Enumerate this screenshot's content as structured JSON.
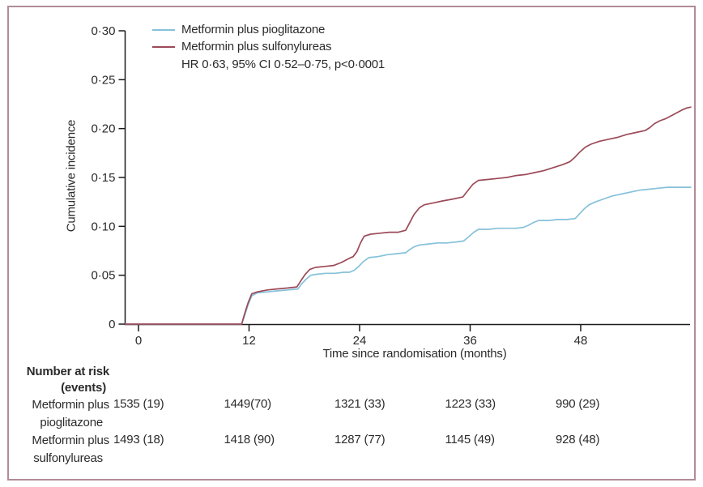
{
  "figure": {
    "border_color": "#b28b97",
    "background": "#ffffff",
    "text_color": "#2b2b2b"
  },
  "chart_data": {
    "type": "line",
    "title": "",
    "xlabel": "Time since randomisation (months)",
    "ylabel": "Cumulative incidence",
    "xlim": [
      0,
      60
    ],
    "ylim": [
      0,
      0.3
    ],
    "xticks": [
      0,
      12,
      24,
      36,
      48
    ],
    "ytick_values": [
      0,
      0.05,
      0.1,
      0.15,
      0.2,
      0.25,
      0.3
    ],
    "ytick_labels": [
      "0",
      "0·05",
      "0·10",
      "0·15",
      "0·20",
      "0·25",
      "0·30"
    ],
    "grid": false,
    "legend_position": "top-left-inside",
    "annotation": "HR 0·63, 95% CI 0·52–0·75, p<0·0001",
    "series": [
      {
        "name": "Metformin plus pioglitazone",
        "color": "#85c1da",
        "points": [
          [
            0,
            0
          ],
          [
            11.2,
            0
          ],
          [
            11.5,
            0.008
          ],
          [
            11.9,
            0.02
          ],
          [
            12.3,
            0.029
          ],
          [
            12.9,
            0.032
          ],
          [
            14,
            0.033
          ],
          [
            15,
            0.034
          ],
          [
            16.2,
            0.035
          ],
          [
            17.3,
            0.036
          ],
          [
            17.7,
            0.041
          ],
          [
            18.2,
            0.046
          ],
          [
            18.7,
            0.05
          ],
          [
            19.3,
            0.051
          ],
          [
            20.3,
            0.052
          ],
          [
            21.3,
            0.052
          ],
          [
            22.3,
            0.053
          ],
          [
            22.9,
            0.053
          ],
          [
            23.4,
            0.055
          ],
          [
            23.9,
            0.059
          ],
          [
            24.4,
            0.064
          ],
          [
            25.0,
            0.068
          ],
          [
            26,
            0.069
          ],
          [
            27,
            0.071
          ],
          [
            28,
            0.072
          ],
          [
            29,
            0.073
          ],
          [
            29.4,
            0.076
          ],
          [
            29.9,
            0.079
          ],
          [
            30.5,
            0.081
          ],
          [
            31.5,
            0.082
          ],
          [
            32.5,
            0.083
          ],
          [
            33.5,
            0.083
          ],
          [
            34.5,
            0.084
          ],
          [
            35.3,
            0.085
          ],
          [
            35.8,
            0.089
          ],
          [
            36.4,
            0.094
          ],
          [
            36.9,
            0.097
          ],
          [
            38,
            0.097
          ],
          [
            39,
            0.098
          ],
          [
            40,
            0.098
          ],
          [
            41,
            0.098
          ],
          [
            41.8,
            0.099
          ],
          [
            42.3,
            0.101
          ],
          [
            42.9,
            0.104
          ],
          [
            43.4,
            0.106
          ],
          [
            44.5,
            0.106
          ],
          [
            45.5,
            0.107
          ],
          [
            46.5,
            0.107
          ],
          [
            47.4,
            0.108
          ],
          [
            47.9,
            0.113
          ],
          [
            48.4,
            0.118
          ],
          [
            48.9,
            0.122
          ],
          [
            49.6,
            0.125
          ],
          [
            50.5,
            0.128
          ],
          [
            51.4,
            0.131
          ],
          [
            52.4,
            0.133
          ],
          [
            53.4,
            0.135
          ],
          [
            54.4,
            0.137
          ],
          [
            55.4,
            0.138
          ],
          [
            56.4,
            0.139
          ],
          [
            57.4,
            0.14
          ],
          [
            60,
            0.14
          ]
        ]
      },
      {
        "name": "Metformin plus sulfonylureas",
        "color": "#9c4a58",
        "points": [
          [
            0,
            0
          ],
          [
            11.2,
            0
          ],
          [
            11.5,
            0.01
          ],
          [
            11.9,
            0.022
          ],
          [
            12.3,
            0.031
          ],
          [
            12.9,
            0.033
          ],
          [
            14,
            0.035
          ],
          [
            15,
            0.036
          ],
          [
            16.2,
            0.037
          ],
          [
            17.2,
            0.038
          ],
          [
            17.6,
            0.044
          ],
          [
            18.1,
            0.051
          ],
          [
            18.6,
            0.056
          ],
          [
            19.2,
            0.058
          ],
          [
            20.2,
            0.059
          ],
          [
            21.2,
            0.06
          ],
          [
            22.0,
            0.063
          ],
          [
            22.8,
            0.067
          ],
          [
            23.3,
            0.069
          ],
          [
            23.7,
            0.074
          ],
          [
            24.1,
            0.083
          ],
          [
            24.5,
            0.09
          ],
          [
            25.2,
            0.092
          ],
          [
            26.2,
            0.093
          ],
          [
            27.2,
            0.094
          ],
          [
            28.2,
            0.094
          ],
          [
            29.0,
            0.096
          ],
          [
            29.4,
            0.103
          ],
          [
            29.9,
            0.112
          ],
          [
            30.5,
            0.119
          ],
          [
            31.0,
            0.122
          ],
          [
            32,
            0.124
          ],
          [
            33,
            0.126
          ],
          [
            34.2,
            0.128
          ],
          [
            35.2,
            0.13
          ],
          [
            35.7,
            0.136
          ],
          [
            36.3,
            0.143
          ],
          [
            36.9,
            0.147
          ],
          [
            38,
            0.148
          ],
          [
            39,
            0.149
          ],
          [
            40,
            0.15
          ],
          [
            41,
            0.152
          ],
          [
            42,
            0.153
          ],
          [
            43,
            0.155
          ],
          [
            44,
            0.157
          ],
          [
            45,
            0.16
          ],
          [
            46,
            0.163
          ],
          [
            46.8,
            0.166
          ],
          [
            47.3,
            0.17
          ],
          [
            47.9,
            0.176
          ],
          [
            48.5,
            0.181
          ],
          [
            49.1,
            0.184
          ],
          [
            50,
            0.187
          ],
          [
            51,
            0.189
          ],
          [
            52,
            0.191
          ],
          [
            53,
            0.194
          ],
          [
            54,
            0.196
          ],
          [
            55,
            0.198
          ],
          [
            55.5,
            0.201
          ],
          [
            56,
            0.205
          ],
          [
            56.6,
            0.208
          ],
          [
            57.2,
            0.21
          ],
          [
            57.8,
            0.213
          ],
          [
            58.4,
            0.216
          ],
          [
            59,
            0.219
          ],
          [
            59.5,
            0.221
          ],
          [
            60,
            0.222
          ]
        ]
      }
    ]
  },
  "risk_table": {
    "header_line1": "Number at risk",
    "header_line2": "(events)",
    "columns_months": [
      0,
      12,
      24,
      36,
      48
    ],
    "rows": [
      {
        "label_line1": "Metformin plus",
        "label_line2": "pioglitazone",
        "values": [
          "1535 (19)",
          "1449(70)",
          "1321 (33)",
          "1223 (33)",
          "990 (29)"
        ]
      },
      {
        "label_line1": "Metformin plus",
        "label_line2": "sulfonylureas",
        "values": [
          "1493 (18)",
          "1418 (90)",
          "1287 (77)",
          "1145 (49)",
          "928 (48)"
        ]
      }
    ]
  }
}
